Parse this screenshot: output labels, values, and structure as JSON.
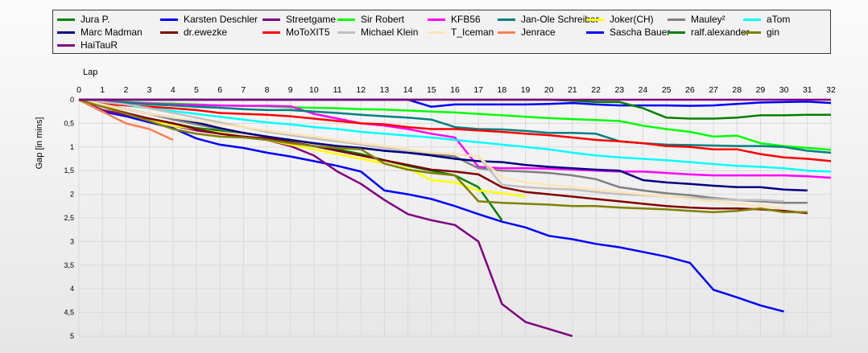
{
  "chart_data": {
    "type": "line",
    "xlabel": "Lap",
    "ylabel": "Gap [in mins]",
    "x_ticks": [
      0,
      1,
      2,
      3,
      4,
      5,
      6,
      7,
      8,
      9,
      10,
      11,
      12,
      13,
      14,
      15,
      16,
      17,
      18,
      19,
      20,
      21,
      22,
      23,
      24,
      25,
      26,
      27,
      28,
      29,
      30,
      31,
      32
    ],
    "y_ticks": [
      0,
      0.5,
      1,
      1.5,
      2,
      2.5,
      3,
      3.5,
      4,
      4.5,
      5
    ],
    "y_tick_labels": [
      "0",
      "0,5",
      "1",
      "1,5",
      "2",
      "2,5",
      "3",
      "3,5",
      "4",
      "4,5",
      "5"
    ],
    "xlim": [
      0,
      32
    ],
    "ylim": [
      0,
      5
    ],
    "y_inverted": true,
    "legend_position": "top",
    "series": [
      {
        "name": "Jura P.",
        "color": "#008000",
        "x": [
          0,
          1,
          2,
          3,
          4,
          5,
          6,
          7,
          8,
          9,
          10,
          11,
          12,
          13,
          14,
          15,
          16,
          17,
          18
        ],
        "values": [
          0,
          0.25,
          0.32,
          0.4,
          0.5,
          0.6,
          0.65,
          0.7,
          0.78,
          0.9,
          0.98,
          1.05,
          1.15,
          1.28,
          1.4,
          1.5,
          1.6,
          1.85,
          2.55
        ]
      },
      {
        "name": "Karsten Deschler",
        "color": "#0000ff",
        "x": [
          0,
          1,
          2,
          3,
          4,
          5,
          6,
          7,
          8,
          9,
          10,
          11,
          12,
          13,
          14,
          15,
          16,
          17,
          18,
          19,
          20,
          21,
          22,
          23,
          24,
          25,
          26,
          27,
          28,
          29,
          30
        ],
        "values": [
          0,
          0.25,
          0.35,
          0.48,
          0.6,
          0.82,
          0.95,
          1.02,
          1.12,
          1.2,
          1.3,
          1.4,
          1.52,
          1.92,
          2.0,
          2.1,
          2.25,
          2.42,
          2.58,
          2.7,
          2.88,
          2.95,
          3.05,
          3.12,
          3.22,
          3.32,
          3.45,
          4.02,
          4.18,
          4.35,
          4.48
        ]
      },
      {
        "name": "Streetgame",
        "color": "#800080",
        "x": [
          0,
          1,
          2,
          3,
          4,
          5,
          6,
          7,
          8,
          9,
          10,
          11,
          12,
          13,
          14,
          15,
          16,
          17,
          18,
          19,
          20,
          21
        ],
        "values": [
          0,
          0.22,
          0.32,
          0.42,
          0.55,
          0.65,
          0.72,
          0.78,
          0.85,
          0.98,
          1.18,
          1.52,
          1.78,
          2.12,
          2.42,
          2.55,
          2.65,
          3.0,
          4.32,
          4.7,
          4.85,
          5.0
        ]
      },
      {
        "name": "Sir Robert",
        "color": "#00ff00",
        "x": [
          0,
          1,
          2,
          3,
          4,
          5,
          6,
          7,
          8,
          9,
          10,
          11,
          12,
          13,
          14,
          15,
          16,
          17,
          18,
          19,
          20,
          21,
          22,
          23,
          24,
          25,
          26,
          27,
          28,
          29,
          30,
          31,
          32
        ],
        "values": [
          0,
          0.03,
          0.05,
          0.07,
          0.08,
          0.1,
          0.12,
          0.13,
          0.14,
          0.16,
          0.17,
          0.18,
          0.2,
          0.21,
          0.23,
          0.25,
          0.27,
          0.3,
          0.33,
          0.36,
          0.39,
          0.41,
          0.43,
          0.45,
          0.55,
          0.62,
          0.68,
          0.78,
          0.76,
          0.92,
          0.98,
          1.02,
          1.06
        ]
      },
      {
        "name": "KFB56",
        "color": "#ff00ff",
        "x": [
          0,
          1,
          2,
          3,
          4,
          5,
          6,
          7,
          8,
          9,
          10,
          11,
          12,
          13,
          14,
          15,
          16,
          17,
          18,
          19,
          20,
          21,
          22,
          23,
          24,
          25,
          26,
          27,
          28,
          29,
          30,
          31,
          32
        ],
        "values": [
          0,
          0.04,
          0.06,
          0.08,
          0.1,
          0.11,
          0.12,
          0.13,
          0.13,
          0.14,
          0.3,
          0.4,
          0.5,
          0.55,
          0.62,
          0.72,
          0.8,
          1.42,
          1.45,
          1.45,
          1.46,
          1.48,
          1.5,
          1.52,
          1.52,
          1.55,
          1.58,
          1.6,
          1.6,
          1.6,
          1.6,
          1.62,
          1.65
        ]
      },
      {
        "name": "Jan-Ole Schreiber",
        "color": "#008080",
        "x": [
          0,
          1,
          2,
          3,
          4,
          5,
          6,
          7,
          8,
          9,
          10,
          11,
          12,
          13,
          14,
          15,
          16,
          17,
          18,
          19,
          20,
          21,
          22,
          23,
          24,
          25,
          26,
          27,
          28,
          29,
          30,
          31,
          32
        ],
        "values": [
          0,
          0.05,
          0.07,
          0.1,
          0.12,
          0.15,
          0.17,
          0.2,
          0.22,
          0.22,
          0.25,
          0.28,
          0.32,
          0.35,
          0.38,
          0.42,
          0.58,
          0.62,
          0.63,
          0.66,
          0.7,
          0.7,
          0.72,
          0.88,
          0.92,
          0.95,
          0.96,
          0.97,
          0.98,
          0.98,
          1.0,
          1.08,
          1.12
        ]
      },
      {
        "name": "Joker(CH)",
        "color": "#ffff00",
        "x": [
          0,
          1,
          2,
          3,
          4,
          5,
          6,
          7,
          8,
          9,
          10,
          11,
          12,
          13,
          14,
          15,
          16,
          17,
          18,
          19
        ],
        "values": [
          0,
          0.12,
          0.28,
          0.42,
          0.55,
          0.62,
          0.7,
          0.78,
          0.85,
          0.95,
          1.05,
          1.15,
          1.25,
          1.35,
          1.45,
          1.7,
          1.75,
          1.92,
          1.98,
          2.05
        ]
      },
      {
        "name": "Mauley²",
        "color": "#808080",
        "x": [
          0,
          1,
          2,
          3,
          4,
          5,
          6,
          7,
          8,
          9,
          10,
          11,
          12,
          13,
          14,
          15,
          16,
          17,
          18,
          19,
          20,
          21,
          22,
          23,
          24,
          25,
          26,
          27,
          28,
          29,
          30,
          31
        ],
        "values": [
          0,
          0.08,
          0.2,
          0.3,
          0.42,
          0.52,
          0.62,
          0.7,
          0.78,
          0.85,
          0.92,
          0.98,
          1.02,
          1.08,
          1.12,
          1.15,
          1.2,
          1.45,
          1.5,
          1.52,
          1.55,
          1.6,
          1.68,
          1.85,
          1.92,
          1.98,
          2.02,
          2.08,
          2.12,
          2.15,
          2.18,
          2.18
        ]
      },
      {
        "name": "aTom",
        "color": "#00ffff",
        "x": [
          0,
          1,
          2,
          3,
          4,
          5,
          6,
          7,
          8,
          9,
          10,
          11,
          12,
          13,
          14,
          15,
          16,
          17,
          18,
          19,
          20,
          21,
          22,
          23,
          24,
          25,
          26,
          27,
          28,
          29,
          30,
          31,
          32
        ],
        "values": [
          0,
          0.06,
          0.12,
          0.18,
          0.24,
          0.3,
          0.36,
          0.42,
          0.48,
          0.52,
          0.58,
          0.62,
          0.68,
          0.72,
          0.76,
          0.8,
          0.85,
          0.9,
          0.95,
          1.0,
          1.05,
          1.12,
          1.18,
          1.22,
          1.25,
          1.28,
          1.32,
          1.36,
          1.4,
          1.42,
          1.45,
          1.5,
          1.52
        ]
      },
      {
        "name": "Marc Madman",
        "color": "#000080",
        "x": [
          0,
          1,
          2,
          3,
          4,
          5,
          6,
          7,
          8,
          9,
          10,
          11,
          12,
          13,
          14,
          15,
          16,
          17,
          18,
          19,
          20,
          21,
          22,
          23,
          24,
          25,
          26,
          27,
          28,
          29,
          30,
          31
        ],
        "values": [
          0,
          0.1,
          0.2,
          0.3,
          0.38,
          0.48,
          0.6,
          0.7,
          0.78,
          0.85,
          0.92,
          0.98,
          1.02,
          1.08,
          1.12,
          1.18,
          1.25,
          1.3,
          1.32,
          1.38,
          1.42,
          1.45,
          1.48,
          1.5,
          1.7,
          1.75,
          1.78,
          1.82,
          1.85,
          1.85,
          1.9,
          1.92
        ]
      },
      {
        "name": "dr.ewezke",
        "color": "#800000",
        "x": [
          0,
          1,
          2,
          3,
          4,
          5,
          6,
          7,
          8,
          9,
          10,
          11,
          12,
          13,
          14,
          15,
          16,
          17,
          18,
          19,
          20,
          21,
          22,
          23,
          24,
          25,
          26,
          27,
          28,
          29,
          30,
          31
        ],
        "values": [
          0,
          0.15,
          0.28,
          0.4,
          0.5,
          0.62,
          0.72,
          0.78,
          0.82,
          0.9,
          0.98,
          1.08,
          1.18,
          1.28,
          1.38,
          1.48,
          1.52,
          1.58,
          1.85,
          1.95,
          2.0,
          2.05,
          2.1,
          2.15,
          2.2,
          2.25,
          2.28,
          2.3,
          2.3,
          2.32,
          2.35,
          2.4
        ]
      },
      {
        "name": "MoToXIT5",
        "color": "#ff0000",
        "x": [
          0,
          1,
          2,
          3,
          4,
          5,
          6,
          7,
          8,
          9,
          10,
          11,
          12,
          13,
          14,
          15,
          16,
          17,
          18,
          19,
          20,
          21,
          22,
          23,
          24,
          25,
          26,
          27,
          28,
          29,
          30,
          31,
          32
        ],
        "values": [
          0,
          0.08,
          0.12,
          0.15,
          0.18,
          0.22,
          0.28,
          0.3,
          0.32,
          0.35,
          0.4,
          0.45,
          0.5,
          0.52,
          0.58,
          0.62,
          0.62,
          0.65,
          0.68,
          0.72,
          0.75,
          0.8,
          0.85,
          0.88,
          0.92,
          0.98,
          1.0,
          1.05,
          1.05,
          1.15,
          1.22,
          1.25,
          1.3
        ]
      },
      {
        "name": "Michael Klein",
        "color": "#c0c0c0",
        "x": [
          0,
          1,
          2,
          3,
          4,
          5,
          6,
          7,
          8,
          9,
          10,
          11,
          12,
          13,
          14,
          15,
          16,
          17,
          18,
          19,
          20,
          21,
          22,
          23,
          24,
          25,
          26,
          27,
          28,
          29,
          30
        ],
        "values": [
          0,
          0.05,
          0.1,
          0.18,
          0.28,
          0.38,
          0.48,
          0.58,
          0.68,
          0.75,
          0.82,
          0.88,
          0.95,
          1.02,
          1.08,
          1.12,
          1.15,
          1.2,
          1.8,
          1.85,
          1.88,
          1.9,
          1.95,
          2.0,
          2.02,
          2.05,
          2.08,
          2.1,
          2.12,
          2.12,
          2.15
        ]
      },
      {
        "name": "T_Iceman",
        "color": "#ffe4b5",
        "x": [
          0,
          1,
          2,
          3,
          4,
          5,
          6,
          7,
          8,
          9,
          10,
          11,
          12,
          13,
          14,
          15,
          16,
          17,
          18,
          19,
          20,
          21,
          22,
          23,
          24,
          25,
          26,
          27,
          28,
          29,
          30
        ],
        "values": [
          0,
          0.1,
          0.2,
          0.3,
          0.38,
          0.45,
          0.52,
          0.58,
          0.65,
          0.72,
          0.78,
          0.85,
          0.92,
          0.98,
          1.05,
          1.12,
          1.15,
          1.2,
          1.65,
          1.75,
          1.8,
          1.85,
          1.9,
          1.95,
          2.0,
          2.05,
          2.1,
          2.15,
          2.2,
          2.25,
          2.3
        ]
      },
      {
        "name": "Jenrace",
        "color": "#ff7f50",
        "x": [
          0,
          1,
          2,
          3,
          4
        ],
        "values": [
          0,
          0.25,
          0.5,
          0.62,
          0.85
        ]
      },
      {
        "name": "Sascha Bauer",
        "color": "#0000ff",
        "x": [
          0,
          1,
          2,
          3,
          4,
          5,
          6,
          7,
          8,
          9,
          10,
          11,
          12,
          13,
          14,
          15,
          16,
          17,
          18,
          19,
          20,
          21,
          22,
          23,
          24,
          25,
          26,
          27,
          28,
          29,
          30,
          31,
          32
        ],
        "values": [
          0,
          0,
          0,
          0,
          0,
          0,
          0,
          0,
          0,
          0,
          0,
          0,
          0,
          0,
          0,
          0.15,
          0.1,
          0.1,
          0.1,
          0.1,
          0.09,
          0.07,
          0.1,
          0.12,
          0.12,
          0.12,
          0.13,
          0.12,
          0.09,
          0.06,
          0.05,
          0.04,
          0.07
        ]
      },
      {
        "name": "ralf.alexander",
        "color": "#008000",
        "x": [
          0,
          1,
          2,
          3,
          4,
          5,
          6,
          7,
          8,
          9,
          10,
          11,
          12,
          13,
          14,
          15,
          16,
          17,
          18,
          19,
          20,
          21,
          22,
          23,
          24,
          25,
          26,
          27,
          28,
          29,
          30,
          31,
          32
        ],
        "values": [
          0,
          0,
          0,
          0,
          0,
          0,
          0,
          0,
          0,
          0,
          0,
          0,
          0,
          0,
          0,
          0,
          0,
          0,
          0,
          0,
          0,
          0.02,
          0.05,
          0.05,
          0.18,
          0.38,
          0.4,
          0.4,
          0.38,
          0.33,
          0.33,
          0.32,
          0.32
        ]
      },
      {
        "name": "gin",
        "color": "#808000",
        "x": [
          0,
          1,
          2,
          3,
          4,
          5,
          6,
          7,
          8,
          9,
          10,
          11,
          12,
          13,
          14,
          15,
          16,
          17,
          18,
          19,
          20,
          21,
          22,
          23,
          24,
          25,
          26,
          27,
          28,
          29,
          30,
          31
        ],
        "values": [
          0,
          0.15,
          0.3,
          0.45,
          0.62,
          0.72,
          0.78,
          0.8,
          0.85,
          0.92,
          0.98,
          1.02,
          1.05,
          1.35,
          1.48,
          1.55,
          1.6,
          2.15,
          2.18,
          2.2,
          2.22,
          2.25,
          2.25,
          2.28,
          2.3,
          2.32,
          2.35,
          2.38,
          2.35,
          2.3,
          2.38,
          2.38
        ]
      },
      {
        "name": "HaiTauR",
        "color": "#800080",
        "x": [
          0,
          1,
          2,
          3,
          4,
          5,
          6,
          7,
          8,
          9,
          10,
          11,
          12,
          13,
          14,
          15,
          16,
          17,
          18,
          19,
          20,
          21,
          22,
          23,
          24,
          25,
          26,
          27,
          28,
          29,
          30,
          31,
          32
        ],
        "values": [
          0,
          0,
          0,
          0,
          0,
          0,
          0,
          0,
          0,
          0,
          0,
          0,
          0,
          0,
          0,
          0,
          0,
          0,
          0,
          0,
          0,
          0,
          0,
          0,
          0,
          0,
          0,
          0,
          0,
          0,
          0,
          0,
          0
        ]
      }
    ]
  }
}
